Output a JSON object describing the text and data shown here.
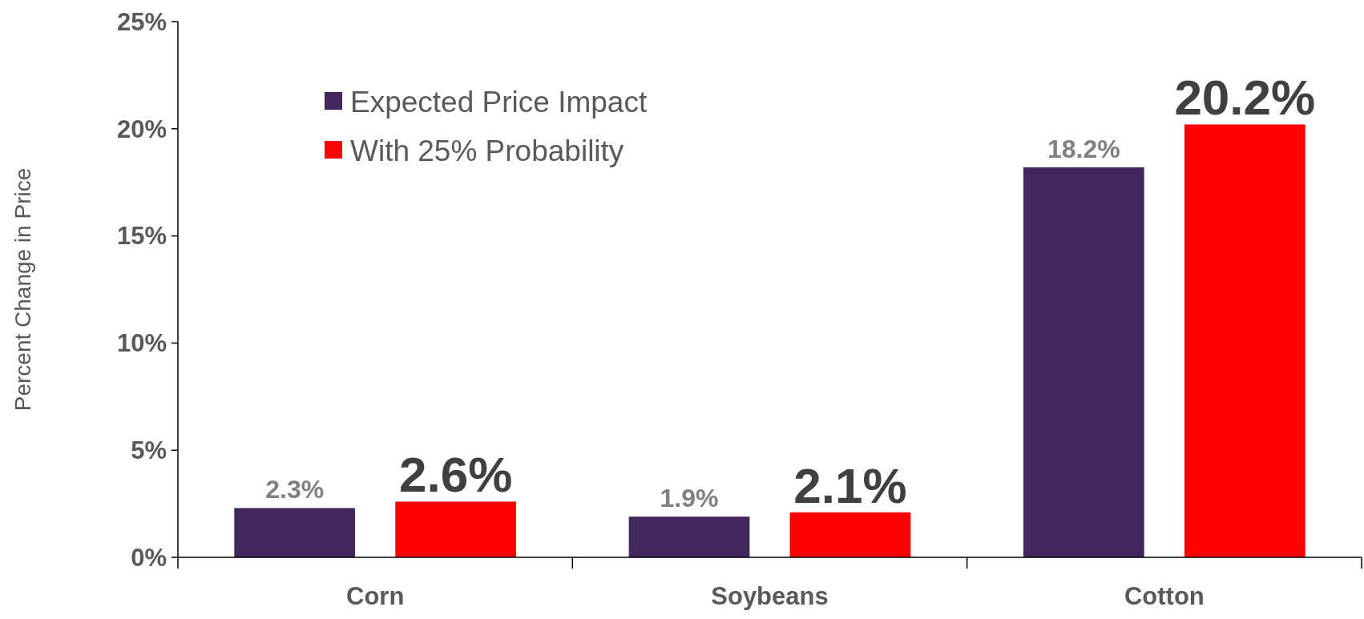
{
  "chart_data": {
    "type": "bar",
    "ylabel": "Percent Change in Price",
    "categories": [
      "Corn",
      "Soybeans",
      "Cotton"
    ],
    "series": [
      {
        "name": "Expected Price Impact",
        "color": "#44265e",
        "values": [
          2.3,
          1.9,
          18.2
        ],
        "value_labels": [
          "2.3%",
          "1.9%",
          "18.2%"
        ]
      },
      {
        "name": "With 25% Probability",
        "color": "#ff0000",
        "values": [
          2.6,
          2.1,
          20.2
        ],
        "value_labels": [
          "2.6%",
          "2.1%",
          "20.2%"
        ]
      }
    ],
    "ylim": [
      0,
      25
    ],
    "yticks": [
      {
        "value": 0,
        "label": "0%"
      },
      {
        "value": 5,
        "label": "5%"
      },
      {
        "value": 10,
        "label": "10%"
      },
      {
        "value": 15,
        "label": "15%"
      },
      {
        "value": 20,
        "label": "20%"
      },
      {
        "value": 25,
        "label": "25%"
      }
    ],
    "legend": "top left",
    "grid": false
  }
}
